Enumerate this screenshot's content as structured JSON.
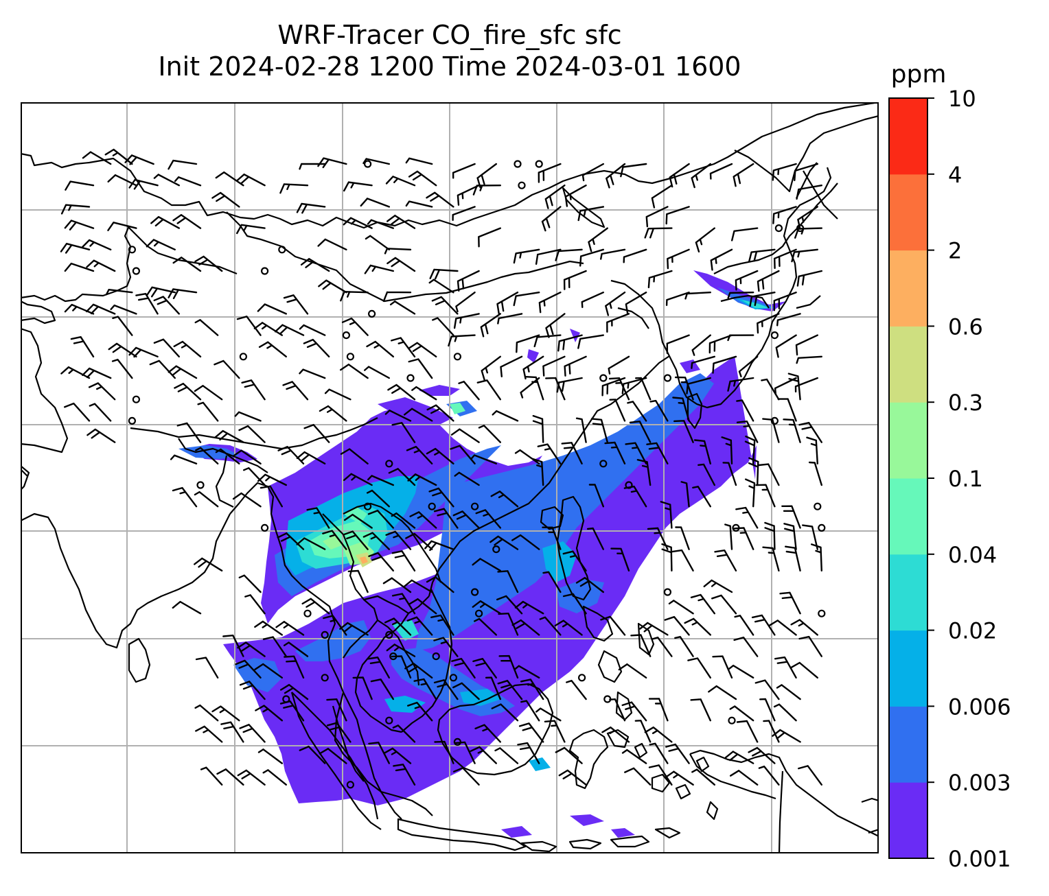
{
  "title": {
    "line1": "WRF-Tracer CO_fire_sfc sfc",
    "line2": "Init 2024-02-28 1200 Time 2024-03-01 1600"
  },
  "colorbar": {
    "unit_label": "ppm",
    "levels": [
      "0.001",
      "0.003",
      "0.006",
      "0.02",
      "0.04",
      "0.1",
      "0.3",
      "0.6",
      "2",
      "4",
      "10"
    ],
    "colors": [
      "#6a2cf5",
      "#3070f0",
      "#05b0e8",
      "#2ddcd4",
      "#66f8ba",
      "#98f89a",
      "#cedf80",
      "#fdaf60",
      "#fc703a",
      "#fb2a16"
    ]
  },
  "map": {
    "gridline_color": "#b0b0b0",
    "coastline_color": "#000000"
  }
}
